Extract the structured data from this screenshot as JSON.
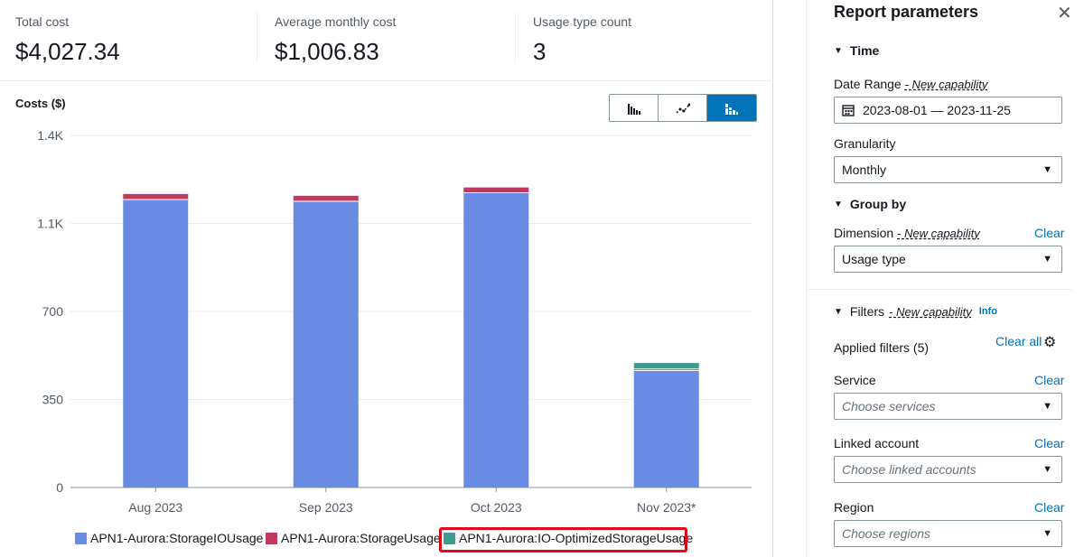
{
  "summary": {
    "total_cost_label": "Total cost",
    "total_cost_value": "$4,027.34",
    "avg_monthly_label": "Average monthly cost",
    "avg_monthly_value": "$1,006.83",
    "usage_count_label": "Usage type count",
    "usage_count_value": "3"
  },
  "chart_controls": {
    "selected": "stacked-bar",
    "options": [
      "bar-chart-icon",
      "line-chart-icon",
      "stacked-bar-chart-icon"
    ]
  },
  "chart_data": {
    "type": "bar",
    "stacked": true,
    "title": "Costs ($)",
    "categories": [
      "Aug 2023",
      "Sep 2023",
      "Oct 2023",
      "Nov 2023*"
    ],
    "y_ticks": [
      "0",
      "350",
      "700",
      "1.1K",
      "1.4K"
    ],
    "ylim": [
      0,
      1400
    ],
    "series": [
      {
        "name": "APN1-Aurora:StorageIOUsage",
        "color": "#6a8be4",
        "values": [
          1145,
          1138,
          1172,
          465
        ]
      },
      {
        "name": "APN1-Aurora:StorageUsage",
        "color": "#c0395e",
        "values": [
          22,
          22,
          21,
          6
        ]
      },
      {
        "name": "APN1-Aurora:IO-OptimizedStorageUsage",
        "color": "#3d9c8d",
        "values": [
          0,
          0,
          0,
          24
        ]
      }
    ],
    "grid": true
  },
  "panel": {
    "title": "Report parameters",
    "time_section": "Time",
    "date_range_label": "Date Range",
    "new_capability": "- New capability",
    "date_range_value": "2023-08-01 — 2023-11-25",
    "granularity_label": "Granularity",
    "granularity_value": "Monthly",
    "group_by_section": "Group by",
    "dimension_label": "Dimension",
    "dimension_value": "Usage type",
    "clear_label": "Clear",
    "filters_section": "Filters",
    "info_label": "Info",
    "applied_filters": "Applied filters (5)",
    "clear_all_label": "Clear all",
    "service_label": "Service",
    "service_placeholder": "Choose services",
    "linked_account_label": "Linked account",
    "linked_account_placeholder": "Choose linked accounts",
    "region_label": "Region",
    "region_placeholder": "Choose regions"
  }
}
